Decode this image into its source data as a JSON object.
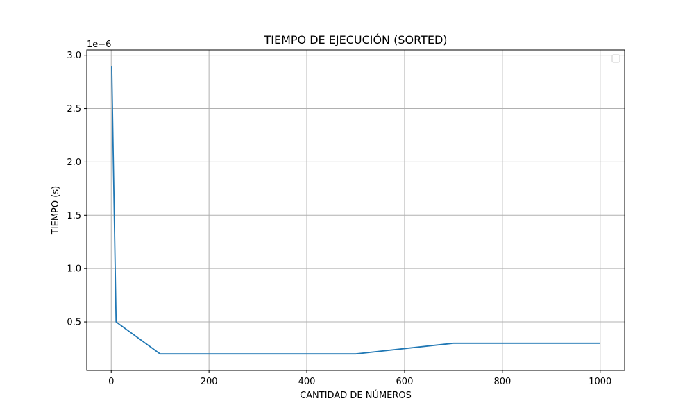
{
  "chart_data": {
    "type": "line",
    "title": "TIEMPO DE EJECUCIÓN (SORTED)",
    "xlabel": "CANTIDAD DE NÚMEROS",
    "ylabel": "TIEMPO (s)",
    "y_scale_offset": "1e−6",
    "x_ticks": [
      "0",
      "200",
      "400",
      "600",
      "800",
      "1000"
    ],
    "y_ticks": [
      "0.5",
      "1.0",
      "1.5",
      "2.0",
      "2.5",
      "3.0"
    ],
    "x_tick_values": [
      0,
      200,
      400,
      600,
      800,
      1000
    ],
    "y_tick_values": [
      5e-07,
      1e-06,
      1.5e-06,
      2e-06,
      2.5e-06,
      3e-06
    ],
    "xlim": [
      -50,
      1050
    ],
    "ylim": [
      4.5e-08,
      3.05e-06
    ],
    "grid": true,
    "legend": "top-right (empty)",
    "series": [
      {
        "color": "#1f77b4",
        "x": [
          1,
          10,
          100,
          500,
          700,
          1000
        ],
        "y": [
          2.9e-06,
          5e-07,
          2e-07,
          2e-07,
          3e-07,
          3e-07
        ]
      }
    ]
  }
}
